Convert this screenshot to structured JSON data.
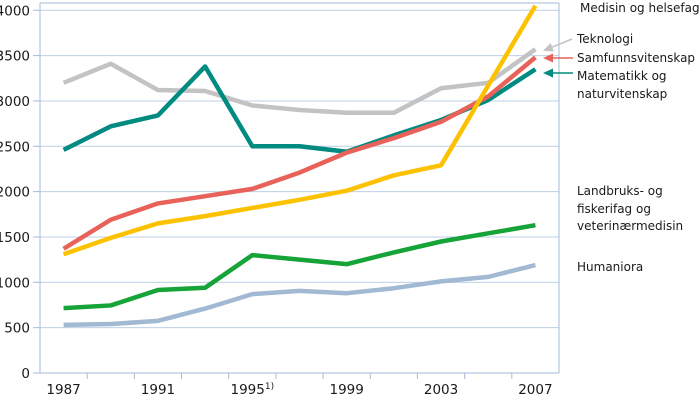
{
  "chart_data": {
    "type": "line",
    "x": [
      1987,
      1989,
      1991,
      1993,
      1995,
      1997,
      1999,
      2001,
      2003,
      2005,
      2007
    ],
    "series": [
      {
        "id": "medisin",
        "name": "Medisin og helsefag",
        "color": "#fcc200",
        "values": [
          1310,
          1490,
          1650,
          1730,
          1820,
          1910,
          2010,
          2180,
          2290,
          3170,
          4050
        ]
      },
      {
        "id": "teknologi",
        "name": "Teknologi",
        "color": "#c3c3c3",
        "values": [
          3200,
          3410,
          3120,
          3110,
          2950,
          2900,
          2870,
          2870,
          3140,
          3200,
          3570
        ]
      },
      {
        "id": "samfunnsvitenskap",
        "name": "Samfunnsvitenskap",
        "color": "#e8625a",
        "values": [
          1370,
          1690,
          1870,
          1950,
          2030,
          2210,
          2430,
          2590,
          2770,
          3050,
          3480
        ]
      },
      {
        "id": "matnat",
        "name": "Matematikk og naturvitenskap",
        "color": "#008b80",
        "values": [
          2460,
          2720,
          2840,
          3380,
          2500,
          2500,
          2440,
          2620,
          2790,
          3010,
          3350
        ]
      },
      {
        "id": "landbruk",
        "name": "Landbruks- og fiskerifag og veterinærmedisin",
        "color": "#16a337",
        "values": [
          715,
          745,
          915,
          940,
          1300,
          1250,
          1200,
          1330,
          1450,
          1540,
          1630
        ]
      },
      {
        "id": "humaniora",
        "name": "Humaniora",
        "color": "#a1b9d2",
        "values": [
          530,
          540,
          575,
          710,
          870,
          905,
          880,
          935,
          1010,
          1060,
          1190
        ]
      }
    ],
    "xlim": [
      1986,
      2008
    ],
    "ylim": [
      0,
      4080
    ],
    "y_ticks": [
      0,
      500,
      1000,
      1500,
      2000,
      2500,
      3000,
      3500,
      4000
    ],
    "y_tick_labels": [
      "0",
      "500",
      "1000",
      "1500",
      "2000",
      "2500",
      "3000",
      "3500",
      "4000"
    ],
    "x_label_years": [
      1987,
      1991,
      1995,
      1999,
      2003,
      2007
    ],
    "x_tick_labels": [
      "1987",
      "1991",
      "1995",
      "1999",
      "2003",
      "2007"
    ],
    "x_footnote": {
      "label_index": 2,
      "marker": "1)"
    },
    "grid": true,
    "legend_position": "right",
    "title": "",
    "xlabel": "",
    "ylabel": ""
  },
  "legend": {
    "medisin": [
      "Medisin og helsefag"
    ],
    "teknologi": [
      "Teknologi"
    ],
    "samfunnsvitenskap": [
      "Samfunnsvitenskap"
    ],
    "matnat": [
      "Matematikk og",
      "naturvitenskap"
    ],
    "landbruk": [
      "Landbruks- og",
      "fiskerifag og",
      "veterinærmedisin"
    ],
    "humaniora": [
      "Humaniora"
    ]
  },
  "colors": {
    "grid": "#bdd0e4",
    "frame": "#a3bcd6",
    "text": "#1a1a1a",
    "background": "#ffffff"
  }
}
